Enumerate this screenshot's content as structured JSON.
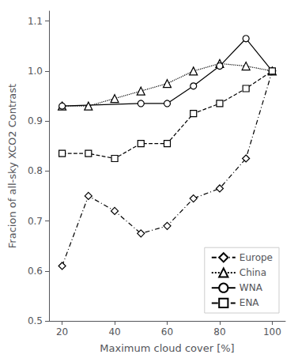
{
  "chart_data": {
    "type": "line",
    "xlabel": "Maximum cloud cover [%]",
    "ylabel": "Fracion of all-sky XCO2 Contrast",
    "series": [
      {
        "name": "Europe",
        "x": [
          20,
          30,
          40,
          50,
          60,
          70,
          80,
          90,
          100
        ],
        "values": [
          0.61,
          0.75,
          0.72,
          0.675,
          0.69,
          0.745,
          0.765,
          0.825,
          1.0
        ],
        "color": "#000000",
        "marker": "diamond",
        "line_style": "dashdot"
      },
      {
        "name": "China",
        "x": [
          20,
          30,
          40,
          50,
          60,
          70,
          80,
          90,
          100
        ],
        "values": [
          0.93,
          0.93,
          0.945,
          0.96,
          0.975,
          1.0,
          1.015,
          1.01,
          1.0
        ],
        "color": "#000000",
        "marker": "triangle",
        "line_style": "dotted"
      },
      {
        "name": "WNA",
        "x": [
          20,
          50,
          60,
          70,
          80,
          90,
          100
        ],
        "values": [
          0.93,
          0.935,
          0.935,
          0.97,
          1.01,
          1.065,
          1.0
        ],
        "color": "#000000",
        "marker": "circle",
        "line_style": "solid"
      },
      {
        "name": "ENA",
        "x": [
          20,
          30,
          40,
          50,
          60,
          70,
          80,
          90,
          100
        ],
        "values": [
          0.835,
          0.835,
          0.825,
          0.855,
          0.855,
          0.915,
          0.935,
          0.965,
          1.0
        ],
        "color": "#000000",
        "marker": "square",
        "line_style": "dashed"
      }
    ],
    "xlim": [
      15,
      105
    ],
    "ylim": [
      0.5,
      1.12
    ],
    "xticks": [
      20,
      40,
      60,
      80,
      100
    ],
    "yticks": [
      0.5,
      0.6,
      0.7,
      0.8,
      0.9,
      {
        "value": 1.0,
        "label": "1.0"
      },
      1.1
    ],
    "grid": false,
    "legend": "lower right"
  }
}
